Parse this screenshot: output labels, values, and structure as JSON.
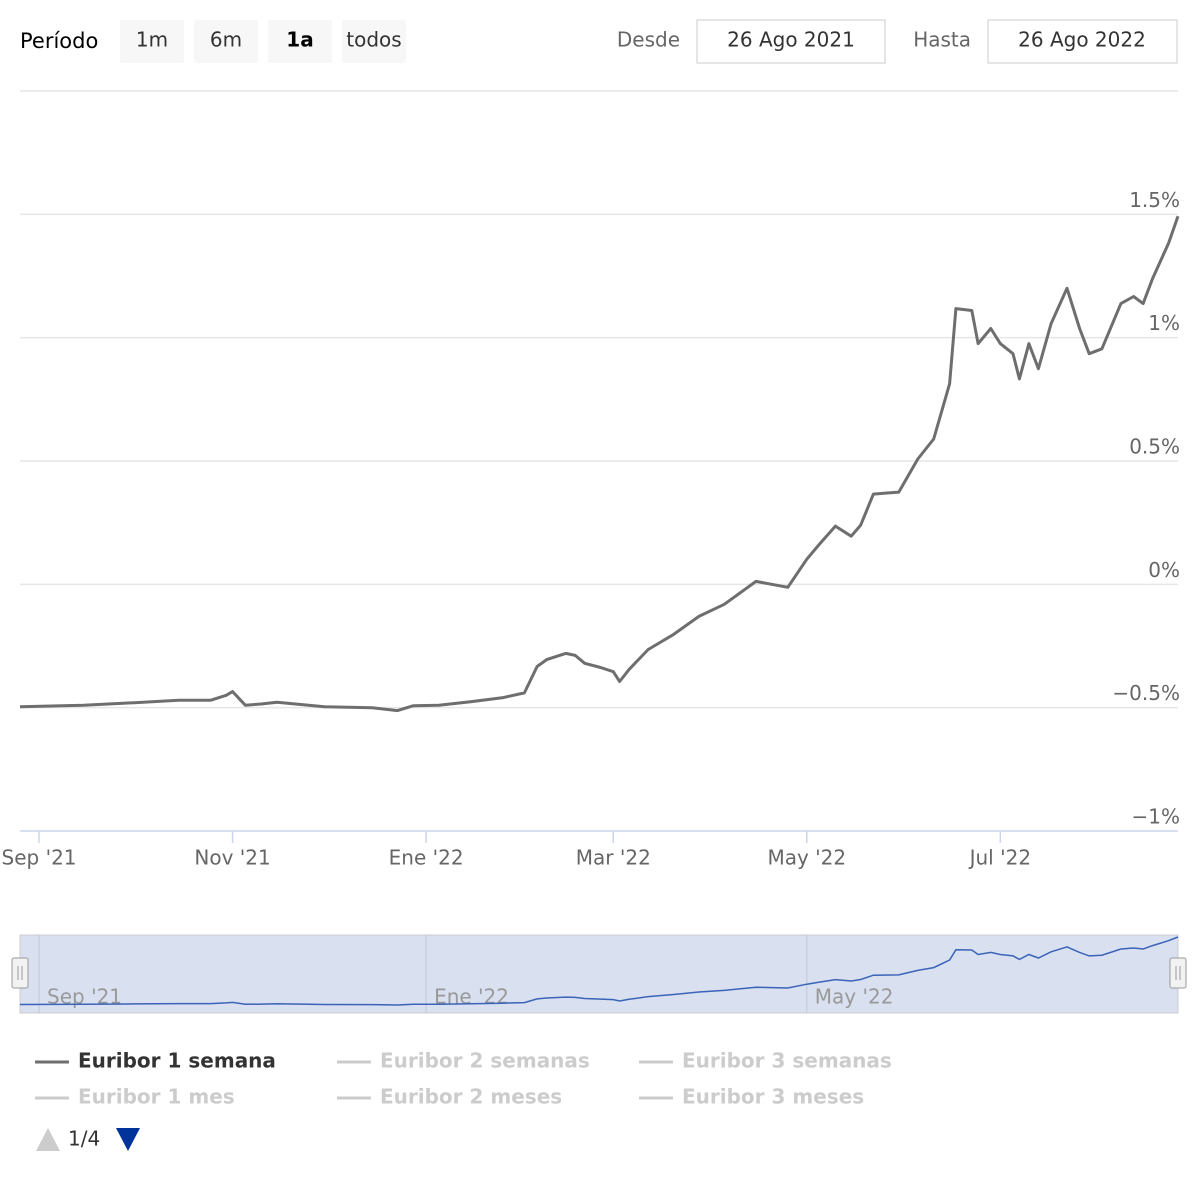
{
  "range_selector": {
    "label": "Período",
    "buttons": [
      "1m",
      "6m",
      "1a",
      "todos"
    ],
    "active": 2,
    "from_label": "Desde",
    "from": "26 Ago 2021",
    "to_label": "Hasta",
    "to": "26 Ago 2022"
  },
  "chart_data": {
    "type": "line",
    "x": [
      "2021-08-26",
      "2021-09-15",
      "2021-10-01",
      "2021-10-15",
      "2021-10-25",
      "2021-10-30",
      "2021-11-01",
      "2021-11-05",
      "2021-11-10",
      "2021-11-15",
      "2021-11-30",
      "2021-12-15",
      "2021-12-23",
      "2021-12-28",
      "2022-01-05",
      "2022-01-15",
      "2022-01-25",
      "2022-02-01",
      "2022-02-05",
      "2022-02-08",
      "2022-02-14",
      "2022-02-17",
      "2022-02-20",
      "2022-02-25",
      "2022-03-01",
      "2022-03-03",
      "2022-03-06",
      "2022-03-12",
      "2022-03-20",
      "2022-03-28",
      "2022-04-05",
      "2022-04-15",
      "2022-04-25",
      "2022-05-01",
      "2022-05-05",
      "2022-05-10",
      "2022-05-15",
      "2022-05-18",
      "2022-05-22",
      "2022-05-30",
      "2022-06-05",
      "2022-06-10",
      "2022-06-15",
      "2022-06-17",
      "2022-06-22",
      "2022-06-24",
      "2022-06-28",
      "2022-07-01",
      "2022-07-05",
      "2022-07-07",
      "2022-07-10",
      "2022-07-13",
      "2022-07-17",
      "2022-07-22",
      "2022-07-26",
      "2022-07-29",
      "2022-08-02",
      "2022-08-08",
      "2022-08-12",
      "2022-08-15",
      "2022-08-18",
      "2022-08-23",
      "2022-08-26"
    ],
    "series": [
      {
        "name": "Euribor 1 semana",
        "color": "#6e6e6e",
        "values": [
          -0.496,
          -0.49,
          -0.48,
          -0.47,
          -0.47,
          -0.45,
          -0.435,
          -0.49,
          -0.485,
          -0.478,
          -0.496,
          -0.5,
          -0.512,
          -0.492,
          -0.49,
          -0.476,
          -0.46,
          -0.44,
          -0.333,
          -0.305,
          -0.28,
          -0.288,
          -0.32,
          -0.337,
          -0.354,
          -0.394,
          -0.345,
          -0.264,
          -0.203,
          -0.13,
          -0.081,
          0.012,
          -0.012,
          0.102,
          0.163,
          0.236,
          0.195,
          0.24,
          0.366,
          0.374,
          0.508,
          0.589,
          0.813,
          1.118,
          1.11,
          0.976,
          1.037,
          0.976,
          0.935,
          0.833,
          0.976,
          0.874,
          1.057,
          1.2,
          1.037,
          0.935,
          0.955,
          1.138,
          1.167,
          1.138,
          1.24,
          1.382,
          1.492
        ]
      },
      {
        "name": "Euribor 2 semanas",
        "color": "#cccccc"
      },
      {
        "name": "Euribor 3 semanas",
        "color": "#cccccc"
      },
      {
        "name": "Euribor 1 mes",
        "color": "#cccccc"
      },
      {
        "name": "Euribor 2 meses",
        "color": "#cccccc"
      },
      {
        "name": "Euribor 3 meses",
        "color": "#cccccc"
      }
    ],
    "xlim": [
      "2021-08-26",
      "2022-08-26"
    ],
    "xticks": [
      {
        "value": "2021-09-01",
        "label": "Sep '21"
      },
      {
        "value": "2021-11-01",
        "label": "Nov '21"
      },
      {
        "value": "2022-01-01",
        "label": "Ene '22"
      },
      {
        "value": "2022-03-01",
        "label": "Mar '22"
      },
      {
        "value": "2022-05-01",
        "label": "May '22"
      },
      {
        "value": "2022-07-01",
        "label": "Jul '22"
      }
    ],
    "ylim": [
      -1,
      2
    ],
    "yticks": [
      {
        "value": -1,
        "label": "−1%"
      },
      {
        "value": -0.5,
        "label": "−0.5%"
      },
      {
        "value": 0,
        "label": "0%"
      },
      {
        "value": 0.5,
        "label": "0.5%"
      },
      {
        "value": 1,
        "label": "1%"
      },
      {
        "value": 1.5,
        "label": "1.5%"
      }
    ],
    "grid": true,
    "navigator": {
      "xticks": [
        {
          "value": "2021-09-01",
          "label": "Sep '21"
        },
        {
          "value": "2022-01-01",
          "label": "Ene '22"
        },
        {
          "value": "2022-05-01",
          "label": "May '22"
        }
      ]
    },
    "legend_page": "1/4"
  }
}
